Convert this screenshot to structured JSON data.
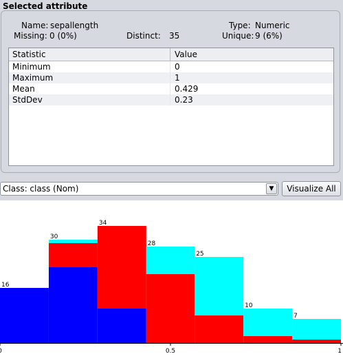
{
  "panel": {
    "title": "Selected attribute",
    "name_label": "Name:",
    "name_value": "sepallength",
    "type_label": "Type:",
    "type_value": "Numeric",
    "missing_label": "Missing:",
    "missing_value": "0 (0%)",
    "distinct_label": "Distinct:",
    "distinct_value": "35",
    "unique_label": "Unique:",
    "unique_value": "9 (6%)"
  },
  "stats": {
    "headers": [
      "Statistic",
      "Value"
    ],
    "rows": [
      [
        "Minimum",
        "0"
      ],
      [
        "Maximum",
        "1"
      ],
      [
        "Mean",
        "0.429"
      ],
      [
        "StdDev",
        "0.23"
      ]
    ]
  },
  "class_select": {
    "value": "Class: class (Nom)"
  },
  "visualize_button": "Visualize All",
  "colors": {
    "blue": "#0000ff",
    "red": "#ff0000",
    "cyan": "#00ffff"
  },
  "chart_data": {
    "type": "bar",
    "stacked": true,
    "x_tick_labels": [
      "0",
      "0.5",
      "1"
    ],
    "xlim": [
      0,
      1
    ],
    "bins": [
      {
        "range": [
          0.0,
          0.143
        ],
        "total": 16
      },
      {
        "range": [
          0.143,
          0.286
        ],
        "total": 30
      },
      {
        "range": [
          0.286,
          0.429
        ],
        "total": 34
      },
      {
        "range": [
          0.429,
          0.571
        ],
        "total": 28
      },
      {
        "range": [
          0.571,
          0.714
        ],
        "total": 25
      },
      {
        "range": [
          0.714,
          0.857
        ],
        "total": 10
      },
      {
        "range": [
          0.857,
          1.0
        ],
        "total": 7
      }
    ],
    "series": [
      {
        "color": "#0000ff",
        "values": [
          16,
          22,
          10,
          0,
          0,
          0,
          0
        ]
      },
      {
        "color": "#ff0000",
        "values": [
          0,
          7,
          24,
          20,
          8,
          2,
          1
        ]
      },
      {
        "color": "#00ffff",
        "values": [
          0,
          1,
          0,
          8,
          17,
          8,
          6
        ]
      }
    ]
  }
}
